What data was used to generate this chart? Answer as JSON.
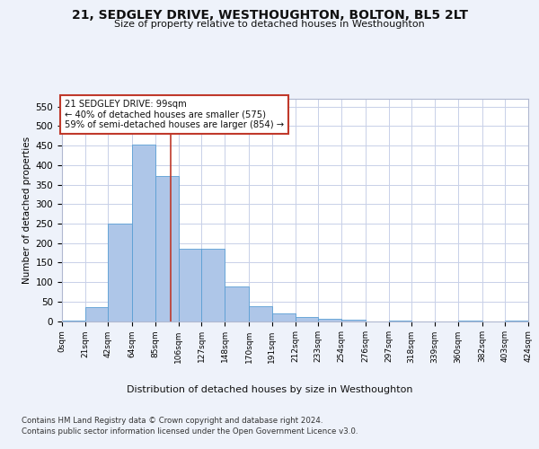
{
  "title_line1": "21, SEDGLEY DRIVE, WESTHOUGHTON, BOLTON, BL5 2LT",
  "title_line2": "Size of property relative to detached houses in Westhoughton",
  "xlabel": "Distribution of detached houses by size in Westhoughton",
  "ylabel": "Number of detached properties",
  "footnote1": "Contains HM Land Registry data © Crown copyright and database right 2024.",
  "footnote2": "Contains public sector information licensed under the Open Government Licence v3.0.",
  "annotation_line1": "21 SEDGLEY DRIVE: 99sqm",
  "annotation_line2": "← 40% of detached houses are smaller (575)",
  "annotation_line3": "59% of semi-detached houses are larger (854) →",
  "bar_color": "#aec6e8",
  "bar_edge_color": "#5a9fd4",
  "vline_color": "#c0392b",
  "vline_x": 99,
  "bin_edges": [
    0,
    21,
    42,
    64,
    85,
    106,
    127,
    148,
    170,
    191,
    212,
    233,
    254,
    276,
    297,
    318,
    339,
    360,
    382,
    403,
    424
  ],
  "bar_heights": [
    2,
    35,
    250,
    453,
    373,
    185,
    185,
    88,
    37,
    19,
    10,
    5,
    4,
    0,
    2,
    0,
    0,
    2,
    0,
    2
  ],
  "xlim": [
    0,
    424
  ],
  "ylim": [
    0,
    570
  ],
  "yticks": [
    0,
    50,
    100,
    150,
    200,
    250,
    300,
    350,
    400,
    450,
    500,
    550
  ],
  "xtick_labels": [
    "0sqm",
    "21sqm",
    "42sqm",
    "64sqm",
    "85sqm",
    "106sqm",
    "127sqm",
    "148sqm",
    "170sqm",
    "191sqm",
    "212sqm",
    "233sqm",
    "254sqm",
    "276sqm",
    "297sqm",
    "318sqm",
    "339sqm",
    "360sqm",
    "382sqm",
    "403sqm",
    "424sqm"
  ],
  "xtick_positions": [
    0,
    21,
    42,
    64,
    85,
    106,
    127,
    148,
    170,
    191,
    212,
    233,
    254,
    276,
    297,
    318,
    339,
    360,
    382,
    403,
    424
  ],
  "bg_color": "#eef2fa",
  "plot_bg_color": "#ffffff",
  "grid_color": "#c8d0e8"
}
